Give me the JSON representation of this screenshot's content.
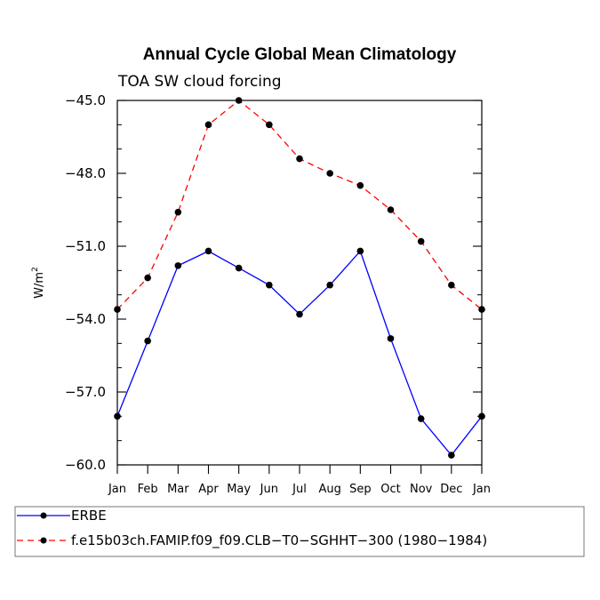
{
  "chart_data": {
    "type": "line",
    "title": "Annual Cycle Global Mean Climatology",
    "subtitle": "TOA SW cloud forcing",
    "xlabel": "",
    "ylabel": "W/m",
    "ylabel_superscript": "2",
    "categories": [
      "Jan",
      "Feb",
      "Mar",
      "Apr",
      "May",
      "Jun",
      "Jul",
      "Aug",
      "Sep",
      "Oct",
      "Nov",
      "Dec",
      "Jan"
    ],
    "ylim": [
      -60.0,
      -45.0
    ],
    "yticks": [
      -45.0,
      -48.0,
      -51.0,
      -54.0,
      -57.0,
      -60.0
    ],
    "ytick_labels": [
      "−45.0",
      "−48.0",
      "−51.0",
      "−54.0",
      "−57.0",
      "−60.0"
    ],
    "series": [
      {
        "name": "ERBE",
        "color": "#0000ff",
        "dash": "solid",
        "values": [
          -58.0,
          -54.9,
          -51.8,
          -51.2,
          -51.9,
          -52.6,
          -53.8,
          -52.6,
          -51.2,
          -54.8,
          -58.1,
          -59.6,
          -58.0
        ]
      },
      {
        "name": "f.e15b03ch.FAMIP.f09_f09.CLB-T0-SGHHT-300 (1980-1984)",
        "color": "#ff0000",
        "dash": "dashed",
        "values": [
          -53.6,
          -52.3,
          -49.6,
          -46.0,
          -45.0,
          -46.0,
          -47.4,
          -48.0,
          -48.5,
          -49.5,
          -50.8,
          -52.6,
          -53.6
        ]
      }
    ]
  },
  "legend": {
    "entries": [
      {
        "label": "ERBE"
      },
      {
        "label": "f.e15b03ch.FAMIP.f09_f09.CLB−T0−SGHHT−300 (1980−1984)"
      }
    ]
  }
}
